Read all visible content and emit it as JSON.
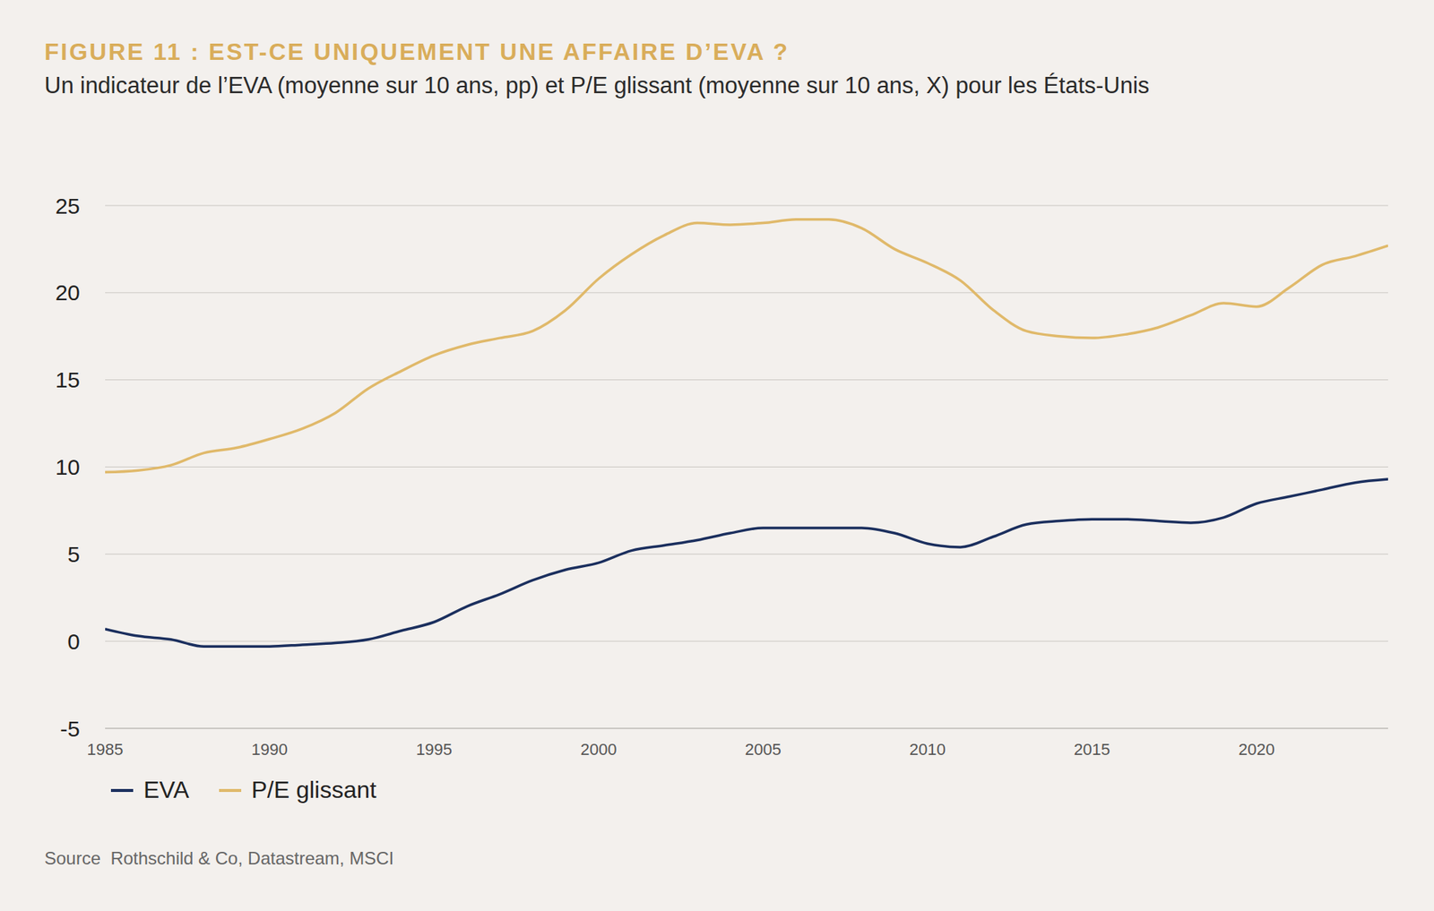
{
  "chart_data": {
    "type": "line",
    "title": "FIGURE 11 : EST-CE UNIQUEMENT UNE AFFAIRE D’EVA ?",
    "subtitle": "Un indicateur de l’EVA (moyenne sur 10 ans, pp) et P/E glissant (moyenne sur 10 ans, X) pour les États-Unis",
    "source": "Source  Rothschild & Co, Datastream, MSCI",
    "x": [
      1985,
      1986,
      1987,
      1988,
      1989,
      1990,
      1991,
      1992,
      1993,
      1994,
      1995,
      1996,
      1997,
      1998,
      1999,
      2000,
      2001,
      2002,
      2003,
      2004,
      2005,
      2006,
      2007,
      2008,
      2009,
      2010,
      2011,
      2012,
      2013,
      2014,
      2015,
      2016,
      2017,
      2018,
      2019,
      2020,
      2021,
      2022,
      2023,
      2024
    ],
    "series": [
      {
        "name": "EVA",
        "color": "#1b2f5e",
        "values": [
          0.7,
          0.3,
          0.1,
          -0.3,
          -0.3,
          -0.3,
          -0.2,
          -0.1,
          0.1,
          0.6,
          1.1,
          2.0,
          2.7,
          3.5,
          4.1,
          4.5,
          5.2,
          5.5,
          5.8,
          6.2,
          6.5,
          6.5,
          6.5,
          6.5,
          6.2,
          5.6,
          5.4,
          6.0,
          6.7,
          6.9,
          7.0,
          7.0,
          6.9,
          6.8,
          7.1,
          7.9,
          8.3,
          8.7,
          9.1,
          9.3
        ]
      },
      {
        "name": "P/E glissant",
        "color": "#e0b96a",
        "values": [
          9.7,
          9.8,
          10.1,
          10.8,
          11.1,
          11.6,
          12.2,
          13.1,
          14.5,
          15.5,
          16.4,
          17.0,
          17.4,
          17.8,
          19.0,
          20.8,
          22.2,
          23.3,
          24.0,
          23.9,
          24.0,
          24.2,
          24.2,
          23.7,
          22.5,
          21.7,
          20.7,
          19.0,
          17.8,
          17.5,
          17.4,
          17.6,
          18.0,
          18.7,
          19.4,
          19.2,
          20.3,
          21.6,
          22.1,
          22.7
        ]
      }
    ],
    "xlim": [
      1985,
      2024
    ],
    "xticks": [
      1985,
      1990,
      1995,
      2000,
      2005,
      2010,
      2015,
      2020
    ],
    "ylim": [
      -5,
      25
    ],
    "yticks": [
      -5,
      0,
      5,
      10,
      15,
      20,
      25
    ],
    "grid": true,
    "legend": "bottom-left"
  }
}
